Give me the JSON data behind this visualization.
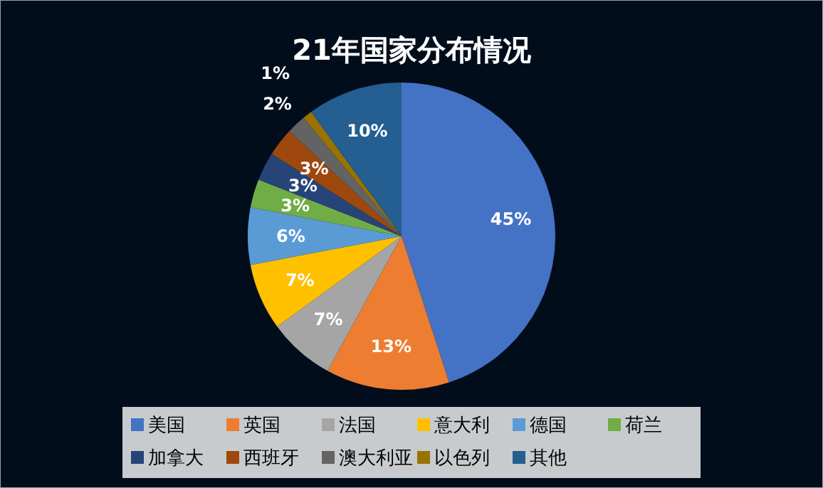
{
  "chart_data": {
    "type": "pie",
    "title": "21年国家分布情况",
    "categories": [
      "美国",
      "英国",
      "法国",
      "意大利",
      "德国",
      "荷兰",
      "加拿大",
      "西班牙",
      "澳大利亚",
      "以色列",
      "其他"
    ],
    "values": [
      45,
      13,
      7,
      7,
      6,
      3,
      3,
      3,
      2,
      1,
      10
    ],
    "colors": [
      "#4472c4",
      "#ed7d31",
      "#a5a5a5",
      "#ffc000",
      "#5b9bd5",
      "#70ad47",
      "#264478",
      "#9e480e",
      "#636363",
      "#997300",
      "#255e91"
    ],
    "value_labels": [
      "45%",
      "13%",
      "7%",
      "7%",
      "6%",
      "3%",
      "3%",
      "3%",
      "2%",
      "1%",
      "10%"
    ],
    "legend": "bottom"
  }
}
